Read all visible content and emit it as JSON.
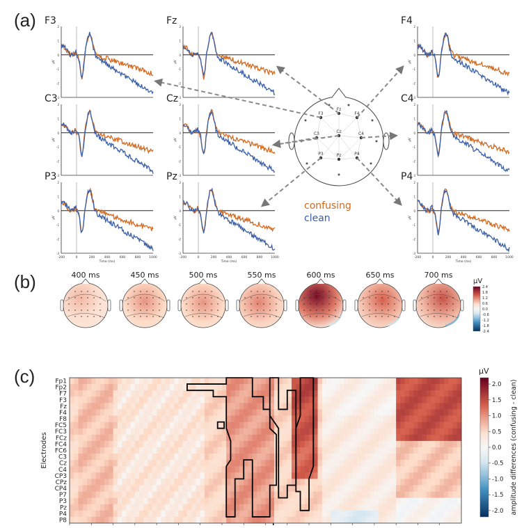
{
  "panels": {
    "a": "(a)",
    "b": "(b)",
    "c": "(c)"
  },
  "erp": {
    "channels": [
      "F3",
      "Fz",
      "F4",
      "C3",
      "Cz",
      "C4",
      "P3",
      "Pz",
      "P4"
    ],
    "ylabel": "µV",
    "yticks": [
      "2",
      "1",
      "0",
      "-1",
      "-2",
      "-3"
    ],
    "xticks": [
      "-200",
      "0",
      "200",
      "400",
      "600",
      "800",
      "1000"
    ],
    "xlabel": "Time (ms)",
    "legend": {
      "confusing": "confusing",
      "clean": "clean"
    },
    "colors": {
      "confusing": "#d2691e",
      "clean": "#3a5fa8"
    },
    "head_labels": [
      "F3",
      "Fz",
      "F4",
      "C3",
      "Cz",
      "C4",
      "P3",
      "Pz",
      "P4"
    ]
  },
  "topomaps": {
    "times": [
      "400 ms",
      "450 ms",
      "500 ms",
      "550 ms",
      "600 ms",
      "650 ms",
      "700 ms"
    ],
    "colorbar_unit": "µV",
    "colorbar_ticks": [
      "2.4",
      "1.8",
      "1.2",
      "0.6",
      "0.0",
      "-0.6",
      "-1.2",
      "-1.8",
      "-2.4"
    ]
  },
  "chart_data": {
    "type": "heatmap",
    "title": "",
    "xlabel": "Time (ms)",
    "ylabel": "Electrodes",
    "colorbar_label": "amplitude differences (confusing - clean)",
    "colorbar_unit": "µV",
    "colorbar_ticks": [
      "2.0",
      "1.5",
      "1.0",
      "0.5",
      "0.0",
      "-0.5",
      "-1.0",
      "-1.5",
      "-2.0"
    ],
    "zlim": [
      -2.2,
      2.2
    ],
    "x_ticks": [
      "100",
      "150",
      "200",
      "250",
      "300",
      "350",
      "400",
      "450",
      "500",
      "550",
      "600",
      "650",
      "700",
      "750",
      "800",
      "850",
      "900",
      "950"
    ],
    "xlim": [
      100,
      1000
    ],
    "electrodes": [
      "Fp1",
      "Fp2",
      "F7",
      "F3",
      "Fz",
      "F4",
      "F8",
      "FC5",
      "FC3",
      "FCz",
      "FC4",
      "FC6",
      "C3",
      "Cz",
      "C4",
      "CP3",
      "CPz",
      "CP4",
      "P7",
      "P3",
      "Pz",
      "P4",
      "P8"
    ]
  }
}
